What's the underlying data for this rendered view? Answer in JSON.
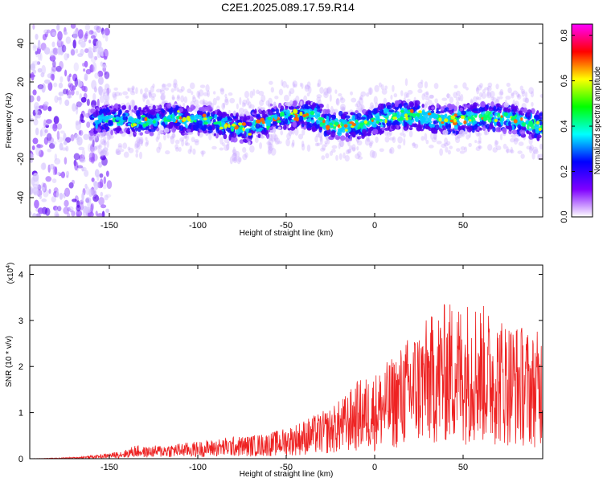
{
  "page": {
    "title": "C2E1.2025.089.17.59.R14"
  },
  "chart_data": [
    {
      "type": "heatmap",
      "title": "C2E1.2025.089.17.59.R14",
      "xlabel": "Height of straight line (km)",
      "ylabel": "Frequency (Hz)",
      "xlim": [
        -195,
        95
      ],
      "ylim": [
        -50,
        50
      ],
      "xticks": [
        -150,
        -100,
        -50,
        0,
        50
      ],
      "yticks": [
        -40,
        -20,
        0,
        20,
        40
      ],
      "colorbar": {
        "label": "Normalized spectral amplitude",
        "range": [
          0.0,
          0.85
        ],
        "ticks": [
          "0.0",
          "0.2",
          "0.4",
          "0.6",
          "0.8"
        ],
        "colors": [
          "#ffffff",
          "#7f00ff",
          "#0000ff",
          "#00ffff",
          "#00ff00",
          "#ffff00",
          "#ff0000",
          "#ff00ff"
        ]
      },
      "grid": false
    },
    {
      "type": "line",
      "xlabel": "Height of straight line (km)",
      "ylabel": "SNR (10 * v/v)",
      "y_multiplier": "(x10",
      "y_multiplier_exp": "4",
      "y_multiplier_close": ")",
      "xlim": [
        -195,
        95
      ],
      "ylim": [
        0,
        4.2
      ],
      "xticks": [
        -150,
        -100,
        -50,
        0,
        50
      ],
      "yticks": [
        0,
        1,
        2,
        3,
        4
      ],
      "color": "#ee2222",
      "grid": false,
      "x": [
        -195,
        -180,
        -170,
        -160,
        -150,
        -140,
        -135,
        -130,
        -120,
        -110,
        -100,
        -90,
        -80,
        -70,
        -60,
        -50,
        -45,
        -40,
        -35,
        -30,
        -25,
        -20,
        -15,
        -10,
        -5,
        0,
        5,
        10,
        15,
        20,
        25,
        30,
        35,
        40,
        45,
        50,
        55,
        60,
        65,
        70,
        75,
        80,
        85,
        90,
        95
      ],
      "y": [
        0.0,
        0.01,
        0.02,
        0.04,
        0.07,
        0.12,
        0.18,
        0.15,
        0.18,
        0.2,
        0.22,
        0.25,
        0.28,
        0.3,
        0.33,
        0.4,
        0.45,
        0.5,
        0.55,
        0.6,
        0.65,
        0.75,
        0.85,
        1.0,
        1.05,
        1.1,
        1.2,
        1.3,
        1.45,
        1.6,
        1.7,
        1.8,
        1.9,
        2.0,
        2.05,
        2.0,
        2.1,
        2.0,
        1.9,
        1.85,
        1.8,
        1.75,
        1.7,
        1.6,
        1.7
      ]
    }
  ]
}
